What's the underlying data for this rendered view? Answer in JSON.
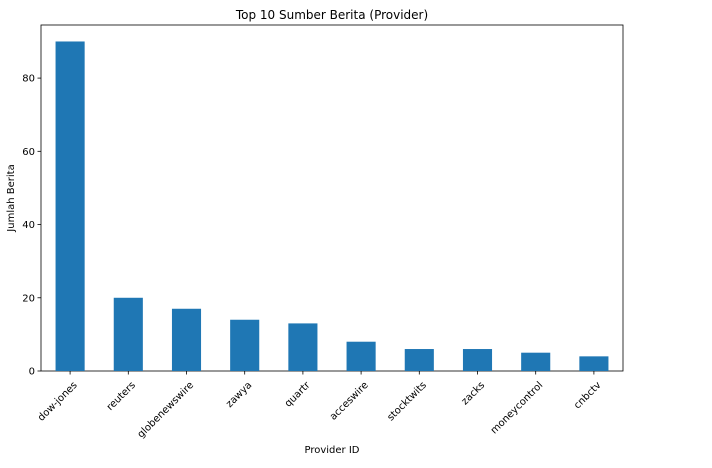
{
  "chart_data": {
    "type": "bar",
    "title": "Top 10 Sumber Berita (Provider)",
    "xlabel": "Provider ID",
    "ylabel": "Jumlah Berita",
    "categories": [
      "dow-jones",
      "reuters",
      "globenewswire",
      "zawya",
      "quartr",
      "acceswire",
      "stocktwits",
      "zacks",
      "moneycontrol",
      "cnbctv"
    ],
    "values": [
      90,
      20,
      17,
      14,
      13,
      8,
      6,
      6,
      5,
      4
    ],
    "ylim": [
      0,
      94.5
    ],
    "yticks": [
      0,
      20,
      40,
      60,
      80
    ],
    "grid": false,
    "legend": "none",
    "bar_color": "#1f77b4",
    "x_tick_rotation": -45
  }
}
